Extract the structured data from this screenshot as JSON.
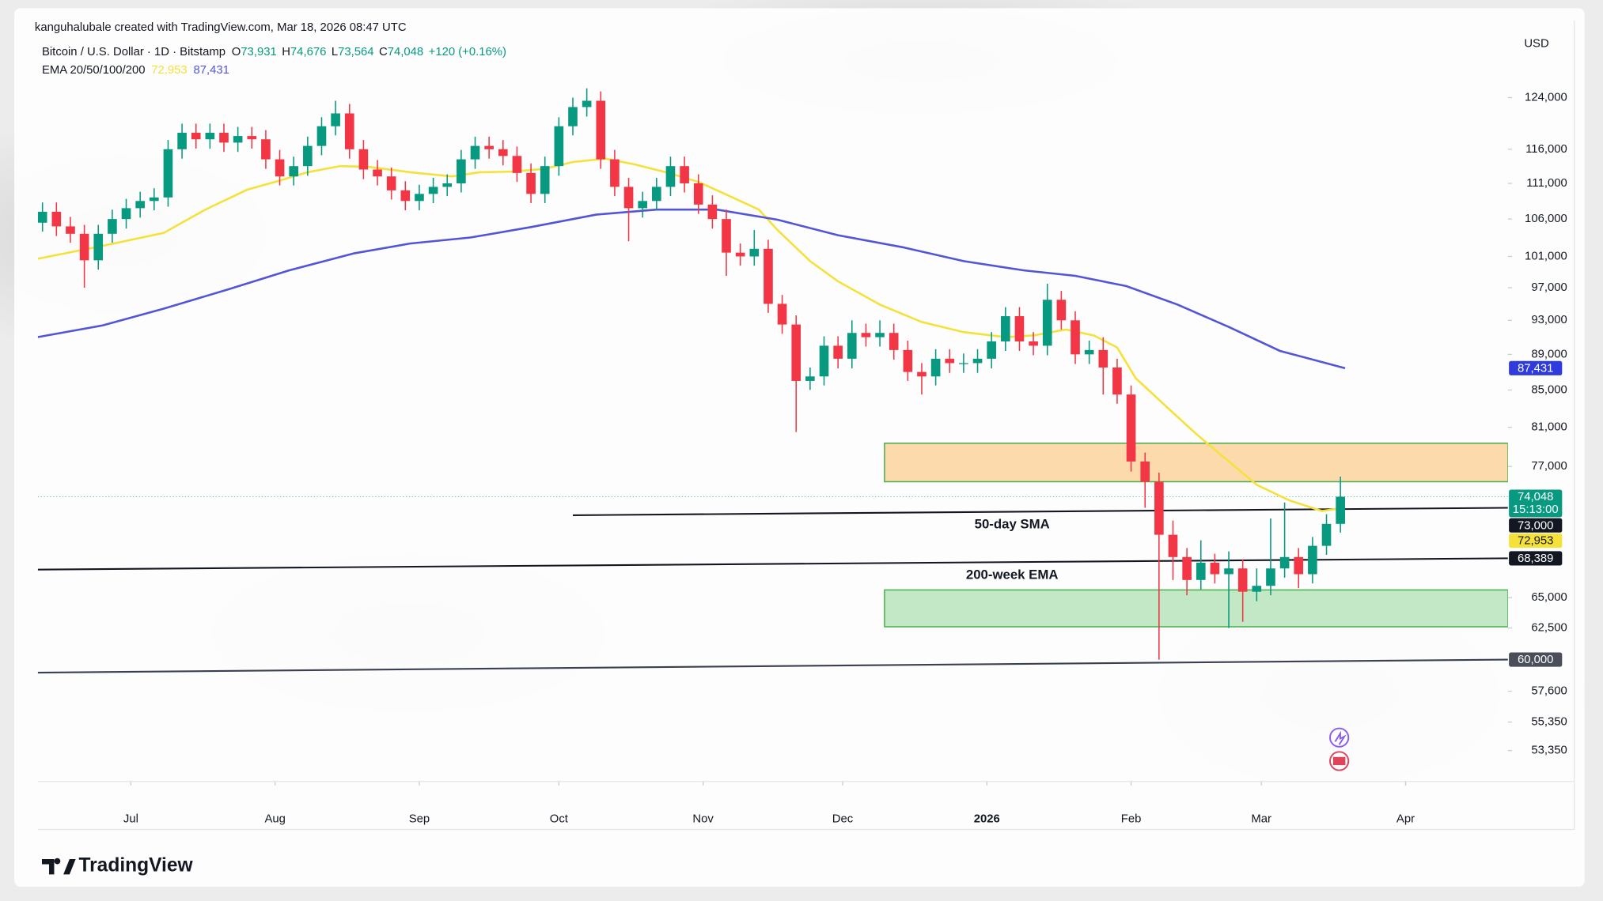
{
  "header": {
    "attribution": "kanguhalubale created with TradingView.com, Mar 18, 2026 08:47 UTC"
  },
  "legend": {
    "symbol": "Bitcoin / U.S. Dollar · 1D · Bitstamp",
    "fields": [
      {
        "key": "O",
        "value": "73,931"
      },
      {
        "key": "H",
        "value": "74,676"
      },
      {
        "key": "L",
        "value": "73,564"
      },
      {
        "key": "C",
        "value": "74,048"
      }
    ],
    "change": "+120 (+0.16%)",
    "ema_name": "EMA 20/50/100/200",
    "ema_values": [
      "72,953",
      "87,431"
    ]
  },
  "brand": "TradingView",
  "chart_data": {
    "type": "candlestick",
    "currency": "USD",
    "log_scale": true,
    "xlim": [
      -20,
      296
    ],
    "xticks": [
      {
        "value": 0,
        "label": "Jul"
      },
      {
        "value": 31,
        "label": "Aug"
      },
      {
        "value": 62,
        "label": "Sep"
      },
      {
        "value": 92,
        "label": "Oct"
      },
      {
        "value": 123,
        "label": "Nov"
      },
      {
        "value": 153,
        "label": "Dec"
      },
      {
        "value": 184,
        "label": "2026",
        "bold": true
      },
      {
        "value": 215,
        "label": "Feb"
      },
      {
        "value": 243,
        "label": "Mar"
      },
      {
        "value": 274,
        "label": "Apr"
      }
    ],
    "ylim": [
      51600,
      137000
    ],
    "yticks": [
      {
        "value": 124000,
        "label": "124,000"
      },
      {
        "value": 116000,
        "label": "116,000"
      },
      {
        "value": 111000,
        "label": "111,000"
      },
      {
        "value": 106000,
        "label": "106,000"
      },
      {
        "value": 101000,
        "label": "101,000"
      },
      {
        "value": 97000,
        "label": "97,000"
      },
      {
        "value": 93000,
        "label": "93,000"
      },
      {
        "value": 89000,
        "label": "89,000"
      },
      {
        "value": 85000,
        "label": "85,000"
      },
      {
        "value": 81000,
        "label": "81,000"
      },
      {
        "value": 77000,
        "label": "77,000"
      },
      {
        "value": 65000,
        "label": "65,000"
      },
      {
        "value": 62500,
        "label": "62,500"
      },
      {
        "value": 57600,
        "label": "57,600"
      },
      {
        "value": 55350,
        "label": "55,350"
      },
      {
        "value": 53350,
        "label": "53,350"
      }
    ],
    "up_color": "#089981",
    "down_color": "#f23645",
    "candles": {
      "x": [
        -19,
        -16,
        -13,
        -10,
        -7,
        -4,
        -1,
        2,
        5,
        8,
        11,
        14,
        17,
        20,
        23,
        26,
        29,
        32,
        35,
        38,
        41,
        44,
        47,
        50,
        53,
        56,
        59,
        62,
        65,
        68,
        71,
        74,
        77,
        80,
        83,
        86,
        89,
        92,
        95,
        98,
        101,
        104,
        107,
        110,
        113,
        116,
        119,
        122,
        125,
        128,
        131,
        134,
        137,
        140,
        143,
        146,
        149,
        152,
        155,
        158,
        161,
        164,
        167,
        170,
        173,
        176,
        179,
        182,
        185,
        188,
        191,
        194,
        197,
        200,
        203,
        206,
        209,
        212,
        215,
        218,
        221,
        224,
        227,
        230,
        233,
        236,
        239,
        242,
        245,
        248,
        251,
        254,
        257,
        260
      ],
      "open": [
        105500,
        107000,
        105000,
        104000,
        100500,
        104000,
        106000,
        107500,
        108500,
        109000,
        116000,
        118500,
        117500,
        118500,
        117000,
        118000,
        117500,
        114500,
        112000,
        113500,
        116500,
        119500,
        121500,
        116000,
        113000,
        112000,
        110000,
        108500,
        109500,
        110500,
        111000,
        114500,
        116500,
        116000,
        115000,
        112500,
        109500,
        113500,
        119500,
        122500,
        123500,
        114500,
        110500,
        107500,
        108500,
        110500,
        113500,
        111000,
        108000,
        106000,
        101500,
        101000,
        102000,
        95000,
        92500,
        86000,
        86500,
        90000,
        88500,
        91500,
        91000,
        91500,
        89500,
        87000,
        86500,
        88500,
        88000,
        88000,
        88500,
        90500,
        93500,
        90500,
        90000,
        95500,
        93000,
        89000,
        89500,
        87500,
        84500,
        77500,
        75500,
        70500,
        68500,
        66500,
        68000,
        67000,
        67500,
        65500,
        66000,
        67500,
        68500,
        67000,
        69500,
        71500
      ],
      "high": [
        108300,
        108300,
        106300,
        105200,
        105200,
        107300,
        108800,
        109800,
        110300,
        117400,
        119900,
        119900,
        119900,
        119900,
        119400,
        119400,
        118900,
        115900,
        114900,
        117900,
        120900,
        123500,
        123000,
        117400,
        114400,
        113300,
        111300,
        110800,
        111800,
        112300,
        115900,
        117900,
        117900,
        117400,
        116400,
        113900,
        114900,
        120900,
        124000,
        125500,
        125000,
        115900,
        111800,
        109800,
        111800,
        114900,
        114900,
        112300,
        109300,
        107300,
        102700,
        104500,
        103200,
        96100,
        93600,
        87500,
        91100,
        91100,
        93000,
        92600,
        93000,
        92600,
        90600,
        88000,
        89600,
        89600,
        89100,
        89600,
        91600,
        94600,
        94600,
        91600,
        97500,
        96600,
        94100,
        90600,
        91000,
        88500,
        85500,
        78400,
        76400,
        71800,
        69300,
        70000,
        68800,
        69000,
        68300,
        67500,
        72000,
        73500,
        69300,
        70300,
        72400,
        76000
      ],
      "low": [
        104300,
        103700,
        102800,
        97000,
        99300,
        102800,
        104700,
        106200,
        107200,
        107700,
        114600,
        116100,
        116100,
        115600,
        115600,
        116100,
        113100,
        110700,
        110700,
        112100,
        115100,
        118100,
        114600,
        111600,
        110700,
        108700,
        107200,
        107200,
        108200,
        109200,
        109700,
        113100,
        114600,
        113600,
        111200,
        108200,
        108200,
        112100,
        118100,
        121000,
        113100,
        109200,
        103000,
        106200,
        107200,
        109200,
        109700,
        106700,
        104700,
        98500,
        99800,
        99800,
        93900,
        91400,
        80500,
        85000,
        85500,
        87400,
        87400,
        89900,
        89900,
        88400,
        86000,
        84500,
        85500,
        86900,
        86900,
        86900,
        87400,
        89400,
        89400,
        88900,
        88900,
        91900,
        87900,
        87900,
        84500,
        83500,
        76500,
        73000,
        60000,
        66500,
        65200,
        65700,
        66200,
        62500,
        63000,
        64700,
        65200,
        66700,
        65800,
        66200,
        68700,
        70700
      ],
      "close": [
        107000,
        105000,
        104000,
        100500,
        104000,
        106000,
        107500,
        108500,
        109000,
        116000,
        118500,
        117500,
        118500,
        117000,
        118000,
        117500,
        114500,
        112000,
        113500,
        116500,
        119500,
        121500,
        116000,
        113000,
        112000,
        110000,
        108500,
        109500,
        110500,
        111000,
        114500,
        116500,
        116000,
        115000,
        112500,
        109500,
        113500,
        119500,
        122500,
        123500,
        114500,
        110500,
        107500,
        108500,
        110500,
        113500,
        111000,
        108000,
        106000,
        101500,
        101000,
        102000,
        95000,
        92500,
        86000,
        86500,
        90000,
        88500,
        91500,
        91000,
        91500,
        89500,
        87000,
        86500,
        88500,
        88000,
        88000,
        88500,
        90500,
        93500,
        90500,
        90000,
        95500,
        93000,
        89000,
        89500,
        87500,
        84500,
        77500,
        75500,
        70500,
        68500,
        66500,
        68000,
        67000,
        67500,
        65500,
        66000,
        67500,
        68500,
        67000,
        69500,
        71500,
        74048
      ]
    },
    "series": [
      {
        "color": "#f5e13a",
        "x": [
          -20,
          -6,
          7,
          16,
          25,
          32,
          38,
          45,
          51,
          60,
          69,
          75,
          82,
          89,
          95,
          102,
          108,
          115,
          122,
          128,
          135,
          139,
          146,
          152,
          161,
          170,
          179,
          188,
          194,
          201,
          207,
          212,
          216,
          223,
          229,
          236,
          242,
          249,
          256,
          260
        ],
        "values": [
          100700,
          102400,
          104100,
          107300,
          110100,
          111400,
          112600,
          113500,
          113400,
          112600,
          112000,
          112600,
          112700,
          113100,
          114100,
          114600,
          113800,
          112600,
          111200,
          109400,
          107300,
          104500,
          100400,
          97800,
          94900,
          92800,
          91600,
          91000,
          91200,
          91900,
          91200,
          89800,
          86300,
          83000,
          80300,
          77500,
          75200,
          73700,
          72700,
          72953
        ]
      },
      {
        "color": "#5355d8",
        "x": [
          -20,
          -6,
          7,
          21,
          34,
          48,
          60,
          73,
          86,
          100,
          113,
          126,
          139,
          152,
          166,
          179,
          192,
          203,
          214,
          225,
          236,
          247,
          261
        ],
        "values": [
          91000,
          92400,
          94400,
          96800,
          99200,
          101400,
          102700,
          103500,
          104900,
          106600,
          107300,
          107300,
          105900,
          103800,
          102200,
          100400,
          99200,
          98500,
          97200,
          94900,
          92200,
          89400,
          87431
        ]
      }
    ],
    "zones": [
      {
        "x": [
          162,
          296
        ],
        "range": [
          75500,
          79350
        ],
        "fill": "#fdd49e",
        "stroke": "#4caf50"
      },
      {
        "x": [
          162,
          296
        ],
        "range": [
          62600,
          65650
        ],
        "fill": "#b9e4bb",
        "stroke": "#4caf50"
      }
    ],
    "trend_lines": [
      {
        "label": "50-day SMA",
        "start": {
          "x": 95,
          "value": 72300
        },
        "end": {
          "x": 296,
          "value": 73000
        },
        "color": "#131722"
      },
      {
        "label": "200-week EMA",
        "start": {
          "x": -20,
          "value": 67400
        },
        "end": {
          "x": 296,
          "value": 68389
        },
        "color": "#131722"
      },
      {
        "start": {
          "x": -20,
          "value": 59000
        },
        "end": {
          "x": 296,
          "value": 60000
        },
        "color": "#3b3f52"
      }
    ],
    "last_price": {
      "value": 74048,
      "color": "#089981"
    },
    "price_tags": [
      {
        "value": 87431,
        "label": "87,431",
        "bg": "#2f3bdc",
        "fg": "#ffffff"
      },
      {
        "value": 74048,
        "label": "74,048",
        "sub": "15:13:00",
        "bg": "#089981",
        "fg": "#ffffff"
      },
      {
        "value": 73000,
        "label": "73,000",
        "bg": "#131722",
        "fg": "#ffffff"
      },
      {
        "value": 72953,
        "label": "72,953",
        "bg": "#f5e13a",
        "fg": "#131722"
      },
      {
        "value": 68389,
        "label": "68,389",
        "bg": "#131722",
        "fg": "#ffffff"
      },
      {
        "value": 60000,
        "label": "60,000",
        "bg": "#4a4d5a",
        "fg": "#ffffff"
      }
    ]
  }
}
